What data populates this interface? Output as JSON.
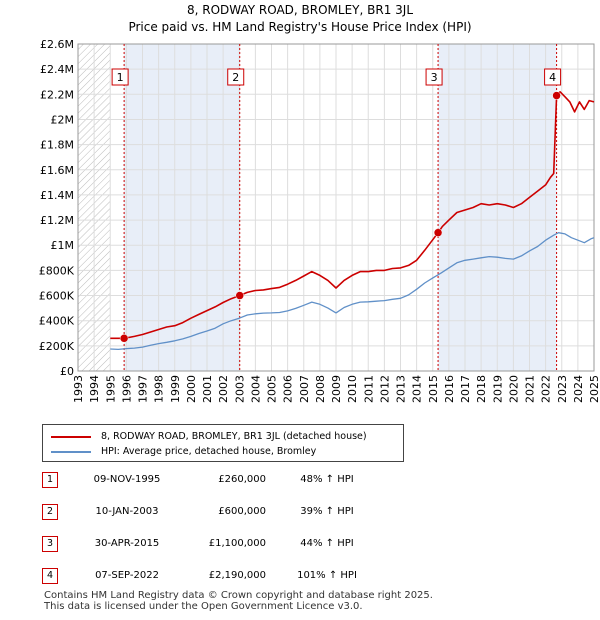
{
  "chart_data": {
    "type": "line",
    "title": "8, RODWAY ROAD, BROMLEY, BR1 3JL",
    "subtitle": "Price paid vs. HM Land Registry's House Price Index (HPI)",
    "xlabel": "",
    "ylabel": "",
    "xlim": [
      1993,
      2025
    ],
    "ylim": [
      0,
      2600000
    ],
    "y_ticks": [
      0,
      200000,
      400000,
      600000,
      800000,
      1000000,
      1200000,
      1400000,
      1600000,
      1800000,
      2000000,
      2200000,
      2400000,
      2600000
    ],
    "y_tick_labels": [
      "£0",
      "£200K",
      "£400K",
      "£600K",
      "£800K",
      "£1M",
      "£1.2M",
      "£1.4M",
      "£1.6M",
      "£1.8M",
      "£2M",
      "£2.2M",
      "£2.4M",
      "£2.6M"
    ],
    "x_ticks": [
      1993,
      1994,
      1995,
      1996,
      1997,
      1998,
      1999,
      2000,
      2001,
      2002,
      2003,
      2004,
      2005,
      2006,
      2007,
      2008,
      2009,
      2010,
      2011,
      2012,
      2013,
      2014,
      2015,
      2016,
      2017,
      2018,
      2019,
      2020,
      2021,
      2022,
      2023,
      2024,
      2025
    ],
    "x_tick_labels": [
      "1993",
      "1994",
      "1995",
      "1996",
      "1997",
      "1998",
      "1999",
      "2000",
      "2001",
      "2002",
      "2003",
      "2004",
      "2005",
      "2006",
      "2007",
      "2008",
      "2009",
      "2010",
      "2011",
      "2012",
      "2013",
      "2014",
      "2015",
      "2016",
      "2017",
      "2018",
      "2019",
      "2020",
      "2021",
      "2022",
      "2023",
      "2024",
      "2025"
    ],
    "hatch_until": 1995.0,
    "colors": {
      "price": "#cc0000",
      "hpi": "#6090c8",
      "shade": "#e8eef8",
      "grid": "#dddddd",
      "vline": "#cc0000"
    },
    "series": [
      {
        "name": "8, RODWAY ROAD, BROMLEY, BR1 3JL (detached house)",
        "color": "#cc0000",
        "x": [
          1995.0,
          1995.86,
          1996.5,
          1997.0,
          1997.5,
          1998.0,
          1998.5,
          1999.0,
          1999.5,
          2000.0,
          2000.5,
          2001.0,
          2001.5,
          2002.0,
          2002.5,
          2003.03,
          2003.5,
          2004.0,
          2004.5,
          2005.0,
          2005.5,
          2006.0,
          2006.5,
          2007.0,
          2007.5,
          2008.0,
          2008.5,
          2009.0,
          2009.5,
          2010.0,
          2010.5,
          2011.0,
          2011.5,
          2012.0,
          2012.5,
          2013.0,
          2013.5,
          2014.0,
          2014.5,
          2015.33,
          2015.6,
          2016.0,
          2016.5,
          2017.0,
          2017.5,
          2018.0,
          2018.5,
          2019.0,
          2019.5,
          2020.0,
          2020.5,
          2021.0,
          2021.5,
          2022.0,
          2022.3,
          2022.5,
          2022.68,
          2022.9,
          2023.2,
          2023.5,
          2023.8,
          2024.1,
          2024.4,
          2024.7,
          2025.0
        ],
        "values": [
          260000,
          260000,
          275000,
          290000,
          310000,
          330000,
          350000,
          360000,
          385000,
          420000,
          450000,
          480000,
          510000,
          545000,
          575000,
          600000,
          625000,
          640000,
          645000,
          655000,
          665000,
          690000,
          720000,
          755000,
          790000,
          760000,
          720000,
          660000,
          720000,
          760000,
          790000,
          790000,
          800000,
          800000,
          815000,
          820000,
          840000,
          880000,
          960000,
          1100000,
          1150000,
          1200000,
          1260000,
          1280000,
          1300000,
          1330000,
          1320000,
          1330000,
          1320000,
          1300000,
          1330000,
          1380000,
          1430000,
          1480000,
          1540000,
          1570000,
          2190000,
          2220000,
          2180000,
          2140000,
          2060000,
          2140000,
          2080000,
          2150000,
          2140000
        ]
      },
      {
        "name": "HPI: Average price, detached house, Bromley",
        "color": "#6090c8",
        "x": [
          1995.0,
          1995.5,
          1996.0,
          1996.5,
          1997.0,
          1997.5,
          1998.0,
          1998.5,
          1999.0,
          1999.5,
          2000.0,
          2000.5,
          2001.0,
          2001.5,
          2002.0,
          2002.5,
          2003.0,
          2003.5,
          2004.0,
          2004.5,
          2005.0,
          2005.5,
          2006.0,
          2006.5,
          2007.0,
          2007.5,
          2008.0,
          2008.5,
          2009.0,
          2009.5,
          2010.0,
          2010.5,
          2011.0,
          2011.5,
          2012.0,
          2012.5,
          2013.0,
          2013.5,
          2014.0,
          2014.5,
          2015.0,
          2015.5,
          2016.0,
          2016.5,
          2017.0,
          2017.5,
          2018.0,
          2018.5,
          2019.0,
          2019.5,
          2020.0,
          2020.5,
          2021.0,
          2021.5,
          2022.0,
          2022.5,
          2022.8,
          2023.2,
          2023.6,
          2024.0,
          2024.4,
          2024.8,
          2025.0
        ],
        "values": [
          175000,
          172000,
          178000,
          182000,
          190000,
          205000,
          218000,
          228000,
          240000,
          255000,
          275000,
          298000,
          318000,
          340000,
          375000,
          400000,
          420000,
          445000,
          455000,
          460000,
          462000,
          465000,
          478000,
          498000,
          522000,
          548000,
          530000,
          500000,
          462000,
          505000,
          530000,
          548000,
          550000,
          555000,
          560000,
          570000,
          578000,
          605000,
          650000,
          700000,
          740000,
          778000,
          820000,
          860000,
          880000,
          890000,
          900000,
          910000,
          905000,
          895000,
          890000,
          915000,
          955000,
          990000,
          1040000,
          1080000,
          1100000,
          1090000,
          1060000,
          1040000,
          1020000,
          1050000,
          1060000
        ]
      }
    ],
    "sales": [
      {
        "label": "1",
        "x": 1995.86,
        "value": 260000,
        "date": "09-NOV-1995",
        "price": "£260,000",
        "hpi_delta": "48% ↑ HPI"
      },
      {
        "label": "2",
        "x": 2003.03,
        "value": 600000,
        "date": "10-JAN-2003",
        "price": "£600,000",
        "hpi_delta": "39% ↑ HPI"
      },
      {
        "label": "3",
        "x": 2015.33,
        "value": 1100000,
        "date": "30-APR-2015",
        "price": "£1,100,000",
        "hpi_delta": "44% ↑ HPI"
      },
      {
        "label": "4",
        "x": 2022.68,
        "value": 2190000,
        "date": "07-SEP-2022",
        "price": "£2,190,000",
        "hpi_delta": "101% ↑ HPI"
      }
    ]
  },
  "legend": {
    "price_label": "8, RODWAY ROAD, BROMLEY, BR1 3JL (detached house)",
    "hpi_label": "HPI: Average price, detached house, Bromley"
  },
  "footer": {
    "line1": "Contains HM Land Registry data © Crown copyright and database right 2025.",
    "line2": "This data is licensed under the Open Government Licence v3.0."
  }
}
